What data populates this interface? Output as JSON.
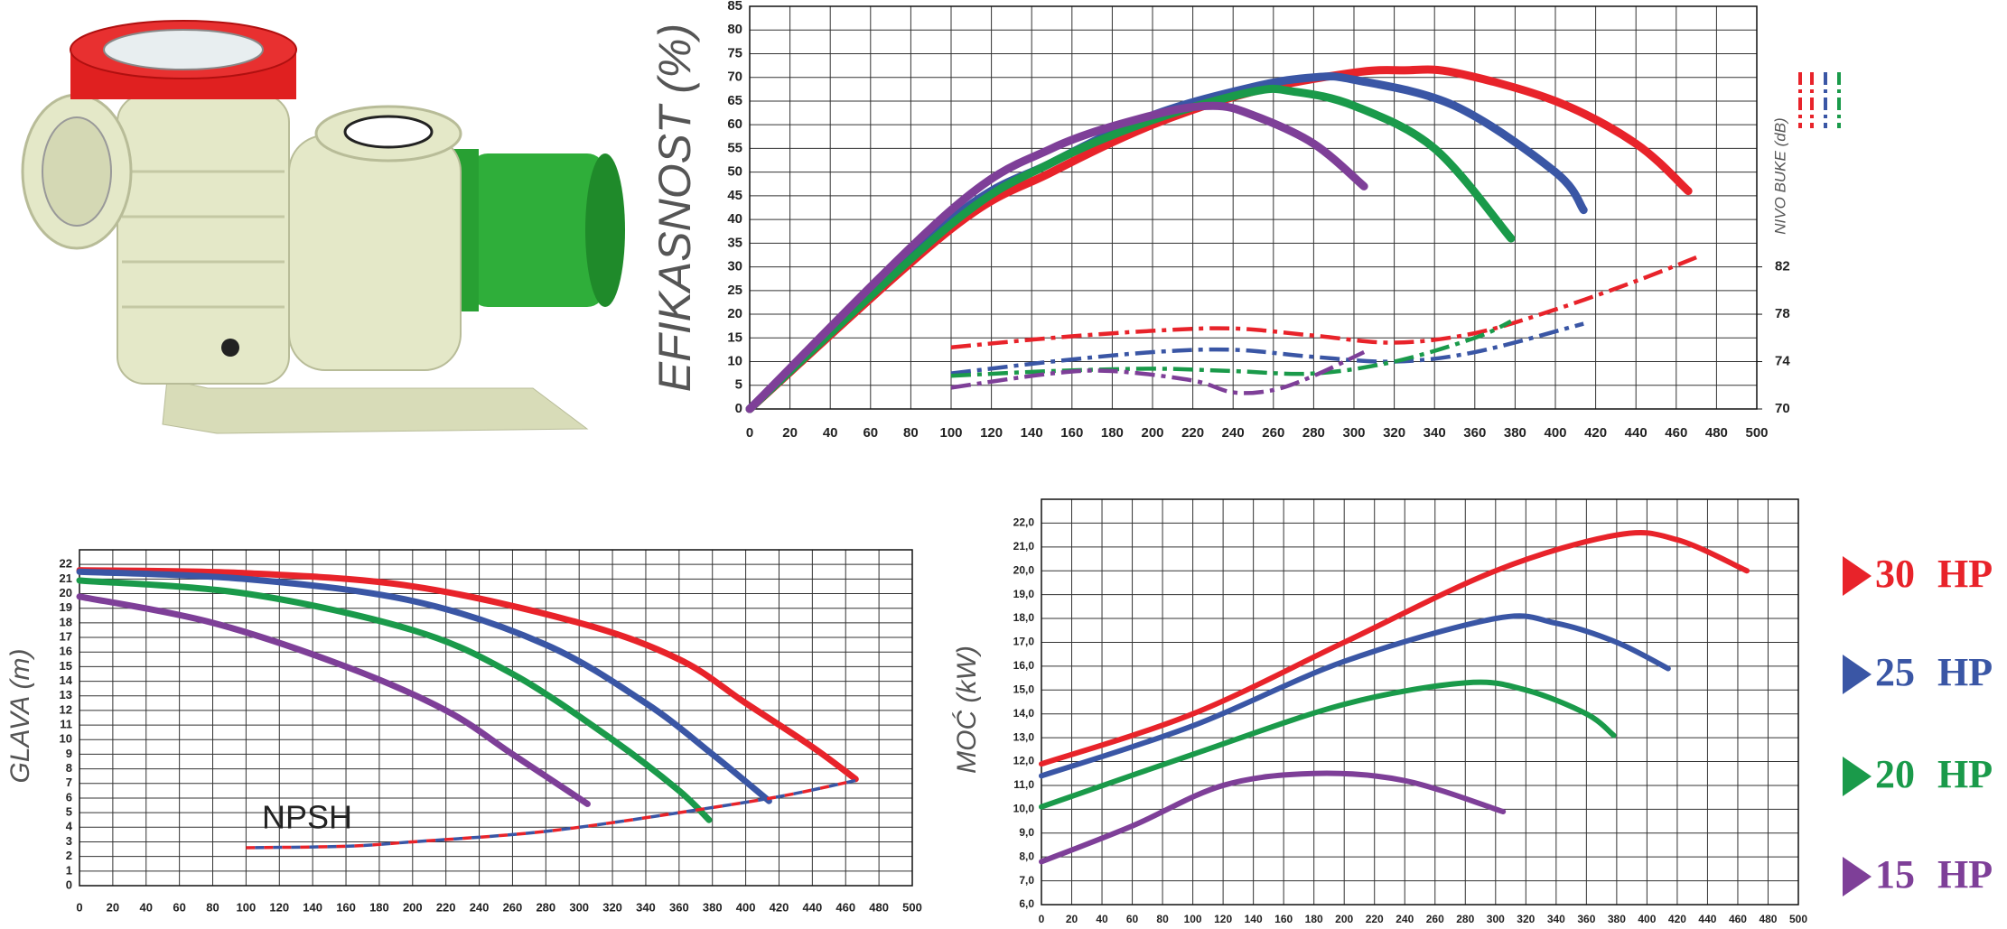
{
  "chart_data": [
    {
      "type": "line",
      "ylabel": "EFIKASNOST (%)",
      "y2label": "NIVO BUKE (dB)",
      "xlim": [
        0,
        500
      ],
      "xticks": [
        0,
        20,
        40,
        60,
        80,
        100,
        120,
        140,
        160,
        180,
        200,
        220,
        240,
        260,
        280,
        300,
        320,
        340,
        360,
        380,
        400,
        420,
        440,
        460,
        480,
        500
      ],
      "ylim": [
        0,
        85
      ],
      "yticks": [
        0,
        5,
        10,
        15,
        20,
        25,
        30,
        35,
        40,
        45,
        50,
        55,
        60,
        65,
        70,
        75,
        80,
        85
      ],
      "y2lim": [
        70,
        104
      ],
      "y2ticks": [
        70,
        74,
        78,
        82
      ],
      "grid": true,
      "series": [
        {
          "color": "#e8232a",
          "style": "solid",
          "x": [
            0,
            100,
            150,
            200,
            250,
            300,
            325,
            350,
            400,
            440,
            466
          ],
          "values": [
            0,
            38,
            50,
            60,
            67,
            71,
            71.5,
            71,
            65,
            56,
            46
          ]
        },
        {
          "color": "#3a56a5",
          "style": "solid",
          "x": [
            0,
            100,
            150,
            200,
            250,
            280,
            300,
            350,
            400,
            414
          ],
          "values": [
            0,
            40,
            52,
            62,
            68,
            70,
            69.5,
            64,
            50,
            42
          ]
        },
        {
          "color": "#1a9a4a",
          "style": "solid",
          "x": [
            0,
            100,
            150,
            200,
            250,
            270,
            300,
            340,
            378
          ],
          "values": [
            0,
            39,
            52,
            61,
            67,
            67,
            64,
            55,
            36
          ]
        },
        {
          "color": "#7e3f98",
          "style": "solid",
          "x": [
            0,
            100,
            150,
            200,
            230,
            250,
            280,
            305
          ],
          "values": [
            0,
            42,
            55,
            62,
            64,
            62,
            56,
            47
          ]
        },
        {
          "color": "#e8232a",
          "style": "dash-dot",
          "axis": "y2",
          "x": [
            100,
            150,
            200,
            240,
            280,
            320,
            360,
            400,
            440,
            470
          ],
          "values": [
            75.2,
            76,
            76.6,
            76.8,
            76.2,
            75.6,
            76.4,
            78.4,
            80.8,
            82.8
          ]
        },
        {
          "color": "#3a56a5",
          "style": "dash-dot",
          "axis": "y2",
          "x": [
            100,
            150,
            200,
            240,
            280,
            320,
            360,
            414
          ],
          "values": [
            73,
            74,
            74.8,
            75,
            74.4,
            74,
            74.8,
            77.2
          ]
        },
        {
          "color": "#1a9a4a",
          "style": "dash-dot",
          "axis": "y2",
          "x": [
            100,
            150,
            200,
            240,
            280,
            320,
            360,
            378
          ],
          "values": [
            72.8,
            73.2,
            73.4,
            73.2,
            73,
            74,
            76,
            77.4
          ]
        },
        {
          "color": "#7e3f98",
          "style": "dash-dot",
          "axis": "y2",
          "x": [
            100,
            150,
            180,
            220,
            240,
            260,
            280,
            305
          ],
          "values": [
            71.8,
            73,
            73.2,
            72.4,
            71.4,
            71.6,
            72.8,
            74.8
          ]
        }
      ]
    },
    {
      "type": "line",
      "ylabel": "GLAVA (m)",
      "annotation": "NPSH",
      "xlim": [
        0,
        500
      ],
      "xticks": [
        0,
        20,
        40,
        60,
        80,
        100,
        120,
        140,
        160,
        180,
        200,
        220,
        240,
        260,
        280,
        300,
        320,
        340,
        360,
        380,
        400,
        420,
        440,
        460,
        480,
        500
      ],
      "ylim": [
        0,
        23
      ],
      "yticks": [
        0,
        1,
        2,
        3,
        4,
        5,
        6,
        7,
        8,
        9,
        10,
        11,
        12,
        13,
        14,
        15,
        16,
        17,
        18,
        19,
        20,
        21,
        22
      ],
      "grid": true,
      "series": [
        {
          "color": "#e8232a",
          "style": "solid",
          "x": [
            0,
            100,
            200,
            300,
            360,
            400,
            440,
            466
          ],
          "values": [
            21.6,
            21.4,
            20.5,
            18,
            15.5,
            12.5,
            9.5,
            7.3
          ]
        },
        {
          "color": "#3a56a5",
          "style": "solid",
          "x": [
            0,
            100,
            200,
            280,
            340,
            380,
            414
          ],
          "values": [
            21.5,
            21,
            19.5,
            16.5,
            12.5,
            9,
            5.8
          ]
        },
        {
          "color": "#1a9a4a",
          "style": "solid",
          "x": [
            0,
            100,
            200,
            260,
            320,
            360,
            378
          ],
          "values": [
            20.9,
            20,
            17.5,
            14.5,
            10,
            6.5,
            4.5
          ]
        },
        {
          "color": "#7e3f98",
          "style": "solid",
          "x": [
            0,
            80,
            160,
            220,
            260,
            305
          ],
          "values": [
            19.8,
            18,
            15,
            12,
            9,
            5.6
          ]
        },
        {
          "color": "#e8232a",
          "color2": "#3a56a5",
          "style": "dashed",
          "x": [
            100,
            160,
            200,
            260,
            300,
            360,
            420,
            466
          ],
          "values": [
            2.6,
            2.7,
            3,
            3.5,
            4,
            5,
            6.1,
            7.2
          ]
        }
      ]
    },
    {
      "type": "line",
      "ylabel": "MOĆ (kW)",
      "xlim": [
        0,
        500
      ],
      "xticks": [
        0,
        20,
        40,
        60,
        80,
        100,
        120,
        140,
        160,
        180,
        200,
        220,
        240,
        260,
        280,
        300,
        320,
        340,
        360,
        380,
        400,
        420,
        440,
        460,
        480,
        500
      ],
      "ylim": [
        6,
        23
      ],
      "yticks": [
        {
          "value": 6,
          "label": "6,0"
        },
        {
          "value": 7,
          "label": "7,0"
        },
        {
          "value": 8,
          "label": "8,0"
        },
        {
          "value": 9,
          "label": "9,0"
        },
        {
          "value": 10,
          "label": "10,0"
        },
        {
          "value": 11,
          "label": "11,0"
        },
        {
          "value": 12,
          "label": "12,0"
        },
        {
          "value": 13,
          "label": "13,0"
        },
        {
          "value": 14,
          "label": "14,0"
        },
        {
          "value": 15,
          "label": "15,0"
        },
        {
          "value": 16,
          "label": "16,0"
        },
        {
          "value": 17,
          "label": "17,0"
        },
        {
          "value": 18,
          "label": "18,0"
        },
        {
          "value": 19,
          "label": "19,0"
        },
        {
          "value": 20,
          "label": "20,0"
        },
        {
          "value": 21,
          "label": "21,0"
        },
        {
          "value": 22,
          "label": "22,0"
        }
      ],
      "grid": true,
      "series": [
        {
          "color": "#e8232a",
          "style": "solid",
          "x": [
            0,
            100,
            200,
            300,
            380,
            420,
            466
          ],
          "values": [
            11.9,
            14,
            17,
            20,
            21.5,
            21.3,
            20
          ]
        },
        {
          "color": "#3a56a5",
          "style": "solid",
          "x": [
            0,
            100,
            200,
            300,
            340,
            380,
            414
          ],
          "values": [
            11.4,
            13.5,
            16.2,
            18,
            17.8,
            17,
            15.9
          ]
        },
        {
          "color": "#1a9a4a",
          "style": "solid",
          "x": [
            0,
            100,
            200,
            280,
            320,
            360,
            378
          ],
          "values": [
            10.1,
            12.3,
            14.4,
            15.3,
            15,
            14,
            13.1
          ]
        },
        {
          "color": "#7e3f98",
          "style": "solid",
          "x": [
            0,
            60,
            120,
            180,
            240,
            305
          ],
          "values": [
            7.8,
            9.3,
            11,
            11.5,
            11.2,
            9.9
          ]
        }
      ]
    }
  ],
  "legend": [
    {
      "label": "30 HP",
      "color": "#e8232a"
    },
    {
      "label": "25 HP",
      "color": "#3a56a5"
    },
    {
      "label": "20 HP",
      "color": "#1a9a4a"
    },
    {
      "label": "15 HP",
      "color": "#7e3f98"
    }
  ]
}
